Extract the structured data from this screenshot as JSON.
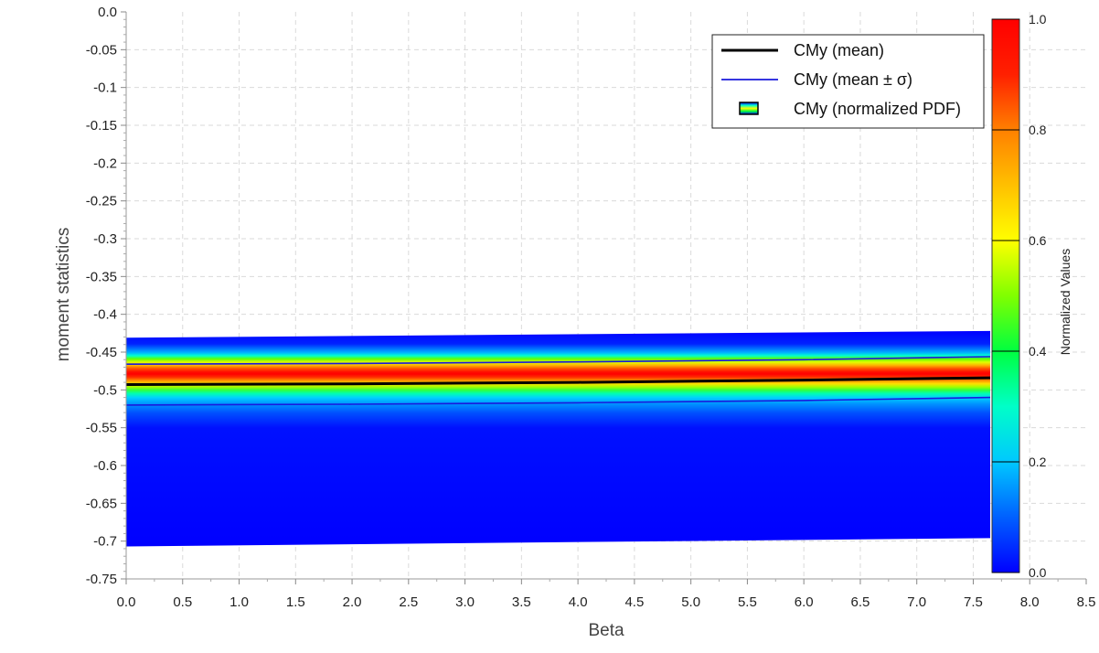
{
  "chart_data": {
    "type": "heatmap",
    "xlabel": "Beta",
    "ylabel": "moment statistics",
    "xlim": [
      0.0,
      8.5
    ],
    "ylim": [
      -0.75,
      0.0
    ],
    "grid": true,
    "x_ticks": [
      "0.0",
      "0.5",
      "1.0",
      "1.5",
      "2.0",
      "2.5",
      "3.0",
      "3.5",
      "4.0",
      "4.5",
      "5.0",
      "5.5",
      "6.0",
      "6.5",
      "7.0",
      "7.5",
      "8.0",
      "8.5"
    ],
    "y_ticks": [
      "0.0",
      "-0.05",
      "-0.1",
      "-0.15",
      "-0.2",
      "-0.25",
      "-0.3",
      "-0.35",
      "-0.4",
      "-0.45",
      "-0.5",
      "-0.55",
      "-0.6",
      "-0.65",
      "-0.7",
      "-0.75"
    ],
    "pdf_region": {
      "x_range": [
        0.0,
        7.65
      ],
      "top": [
        [
          0.0,
          -0.431
        ],
        [
          7.65,
          -0.422
        ]
      ],
      "bottom": [
        [
          0.0,
          -0.707
        ],
        [
          7.65,
          -0.696
        ]
      ]
    },
    "series": [
      {
        "name": "CMy (mean)",
        "color": "#000000",
        "x": [
          0.0,
          2.0,
          4.0,
          6.0,
          7.65
        ],
        "y": [
          -0.493,
          -0.492,
          -0.49,
          -0.487,
          -0.484
        ]
      },
      {
        "name": "CMy (mean ± σ)",
        "color": "#1a1adc",
        "x": [
          0.0,
          2.0,
          4.0,
          6.0,
          7.65
        ],
        "y": [
          -0.466,
          -0.465,
          -0.463,
          -0.46,
          -0.456
        ]
      },
      {
        "name": "CMy (mean ± σ)",
        "color": "#1a1adc",
        "x": [
          0.0,
          2.0,
          4.0,
          6.0,
          7.65
        ],
        "y": [
          -0.52,
          -0.519,
          -0.517,
          -0.514,
          -0.51
        ]
      }
    ],
    "legend": {
      "position": "top-right",
      "entries": [
        {
          "label": "CMy (mean)",
          "kind": "line",
          "color": "#000000"
        },
        {
          "label": "CMy (mean ± σ)",
          "kind": "line",
          "color": "#1a1adc"
        },
        {
          "label": "CMy (normalized PDF)",
          "kind": "patch"
        }
      ]
    },
    "colorbar": {
      "label": "Normalized Values",
      "range": [
        0.0,
        1.0
      ],
      "ticks": [
        "0.0",
        "0.2",
        "0.4",
        "0.6",
        "0.8",
        "1.0"
      ],
      "colormap": [
        "#0000ff",
        "#0060ff",
        "#00c8ff",
        "#00ffc8",
        "#00ff40",
        "#80ff00",
        "#ffff00",
        "#ffc000",
        "#ff8000",
        "#ff2000",
        "#ff0000"
      ]
    }
  }
}
